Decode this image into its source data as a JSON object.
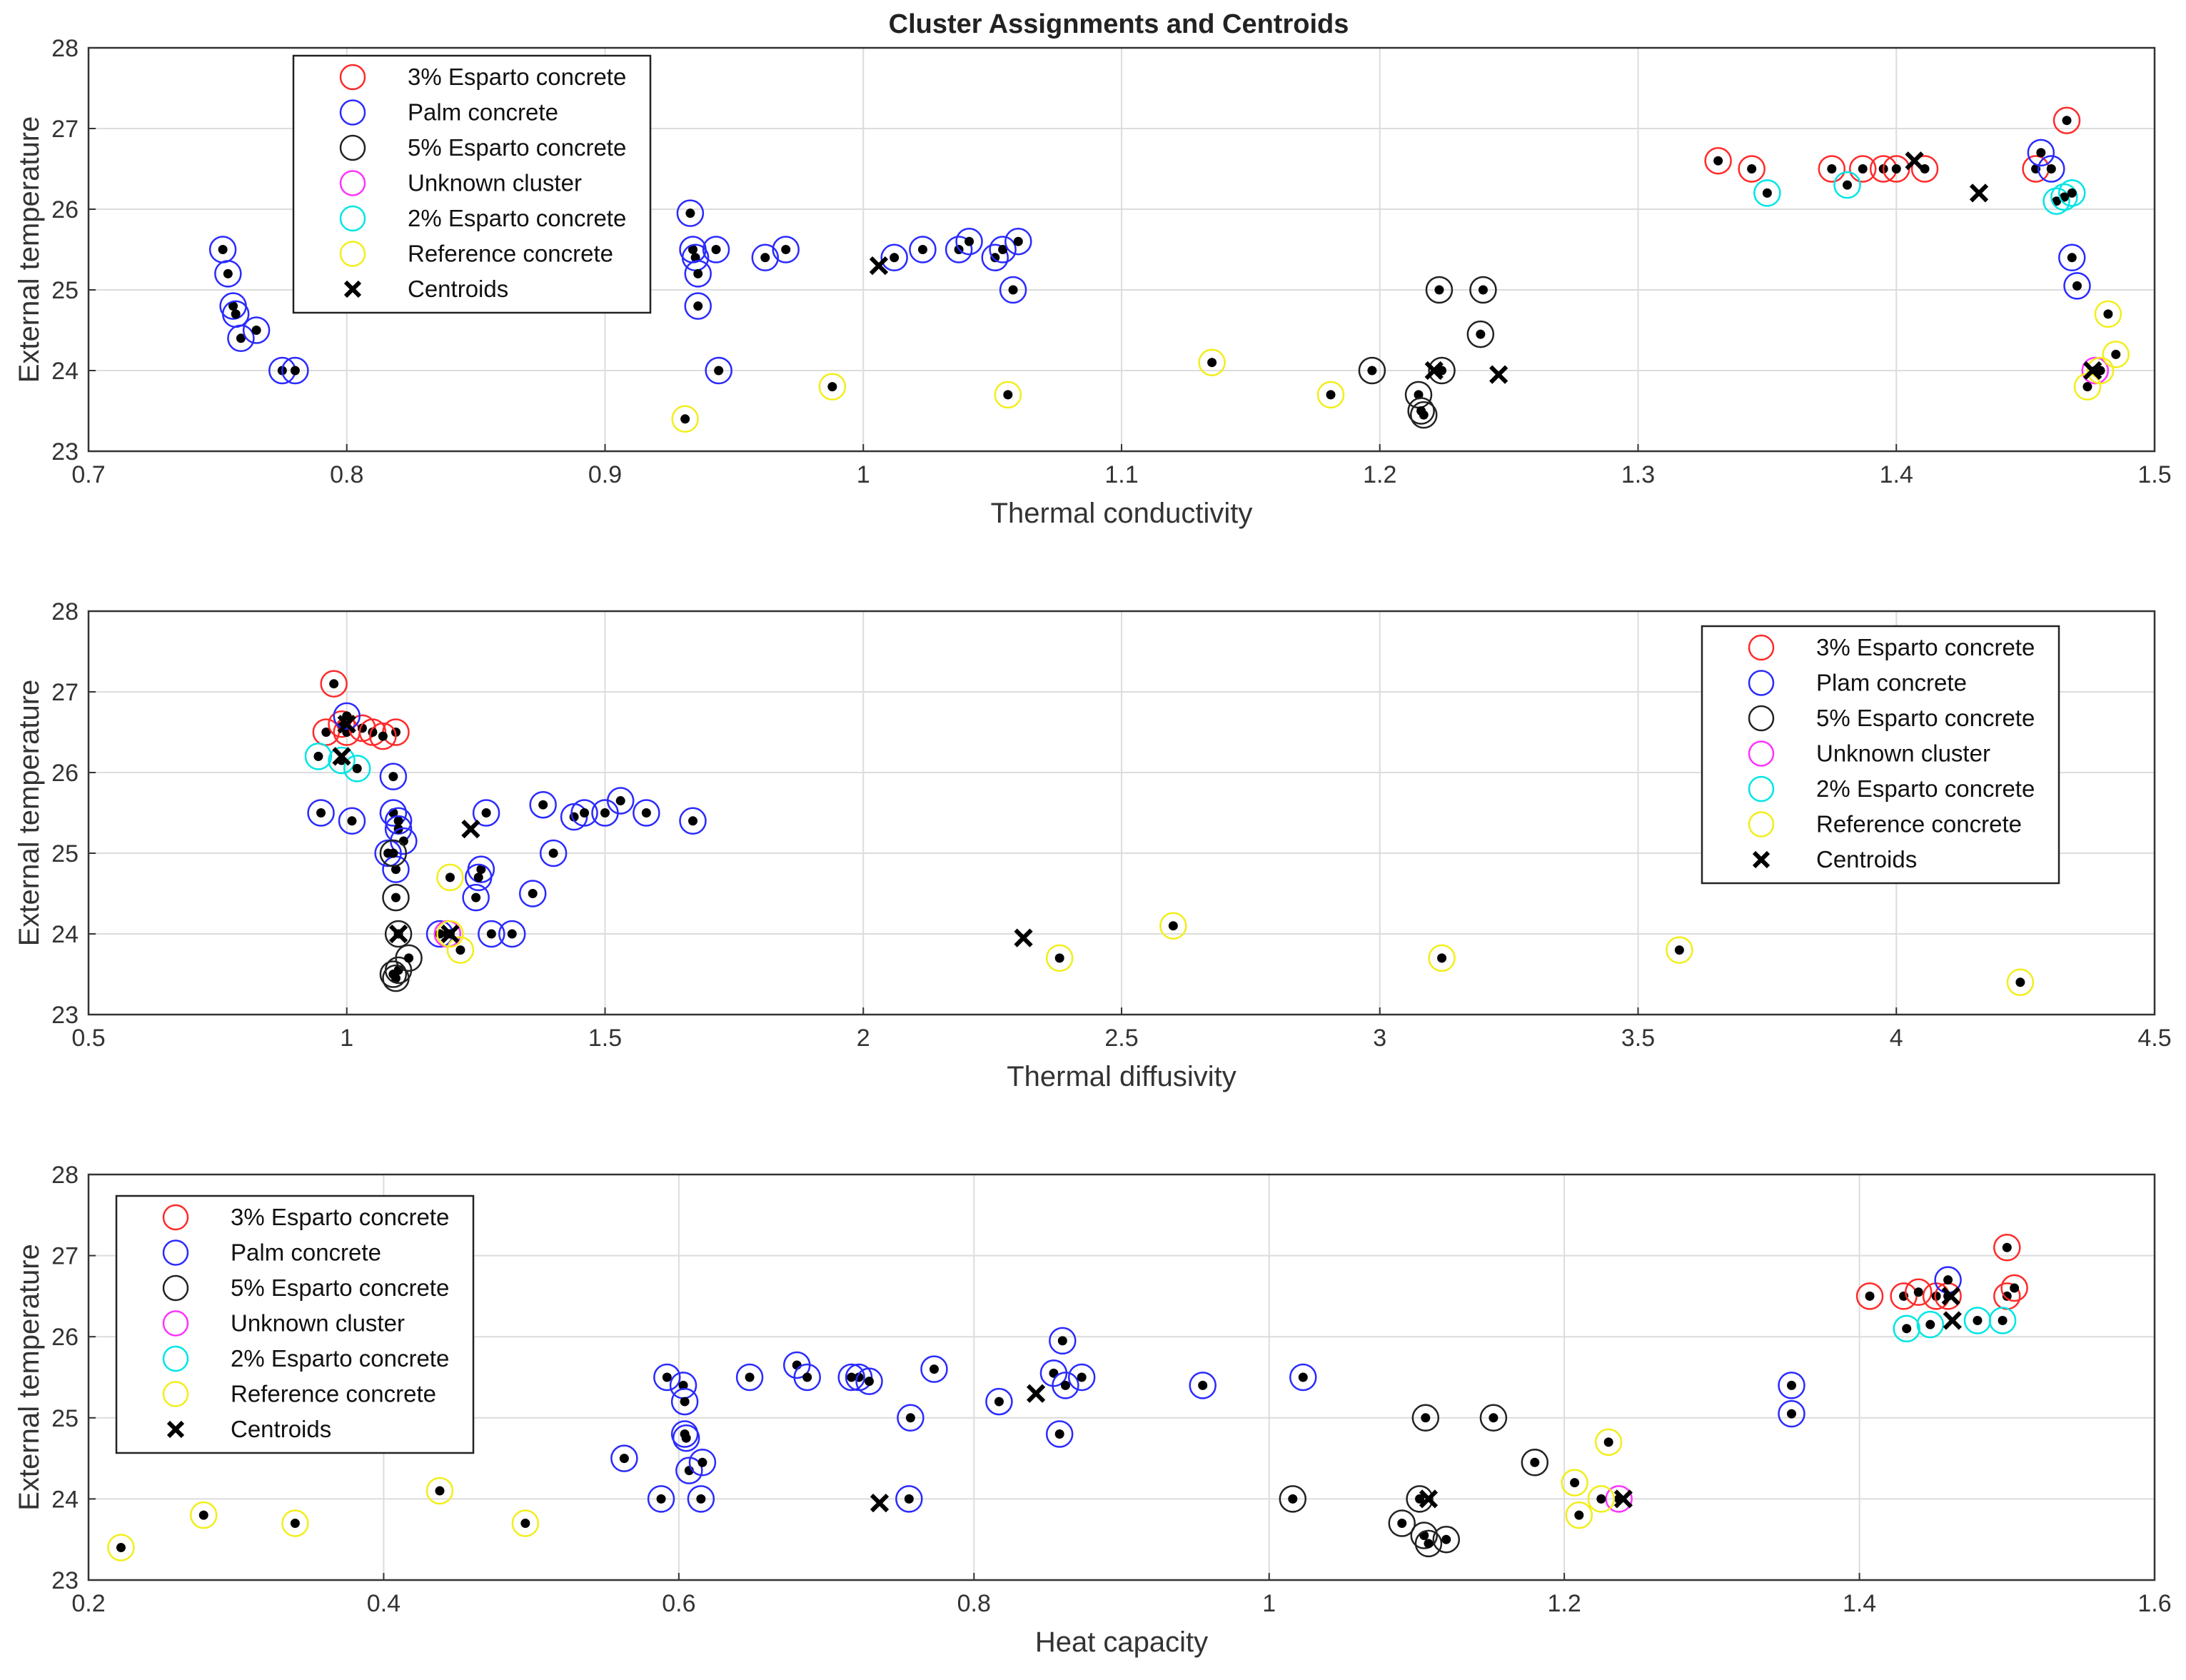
{
  "figure": {
    "title": "Cluster Assignments and Centroids"
  },
  "colors": {
    "3% Esparto concrete": "#ff2a2a",
    "Palm concrete": "#2a2aff",
    "5% Esparto concrete": "#222222",
    "Unknown cluster": "#ff33ff",
    "2% Esparto concrete": "#00e5e5",
    "Reference concrete": "#f2ee1a",
    "Centroids": "#000000"
  },
  "chart_data": [
    {
      "type": "scatter",
      "title": "Cluster Assignments and Centroids",
      "xlabel": "Thermal conductivity",
      "ylabel": "External temperature",
      "xlim": [
        0.7,
        1.5
      ],
      "ylim": [
        23,
        28
      ],
      "xticks": [
        "0.7",
        "0.8",
        "0.9",
        "1",
        "1.1",
        "1.2",
        "1.3",
        "1.4",
        "1.5"
      ],
      "yticks": [
        "23",
        "24",
        "25",
        "26",
        "27",
        "28"
      ],
      "legend_position": "top-left",
      "legend": [
        "3% Esparto concrete",
        "Palm concrete",
        "5% Esparto concrete",
        "Unknown cluster",
        "2% Esparto concrete",
        "Reference concrete",
        "Centroids"
      ],
      "series": [
        {
          "name": "3% Esparto concrete",
          "points": [
            [
              1.331,
              26.6
            ],
            [
              1.344,
              26.5
            ],
            [
              1.375,
              26.5
            ],
            [
              1.387,
              26.5
            ],
            [
              1.395,
              26.5
            ],
            [
              1.4,
              26.5
            ],
            [
              1.411,
              26.5
            ],
            [
              1.454,
              26.5
            ],
            [
              1.466,
              27.1
            ]
          ]
        },
        {
          "name": "Palm concrete",
          "points": [
            [
              0.752,
              25.5
            ],
            [
              0.754,
              25.2
            ],
            [
              0.756,
              24.8
            ],
            [
              0.757,
              24.7
            ],
            [
              0.759,
              24.4
            ],
            [
              0.765,
              24.5
            ],
            [
              0.775,
              24.0
            ],
            [
              0.78,
              24.0
            ],
            [
              0.933,
              25.95
            ],
            [
              0.934,
              25.5
            ],
            [
              0.935,
              25.4
            ],
            [
              0.936,
              25.2
            ],
            [
              0.936,
              24.8
            ],
            [
              0.943,
              25.5
            ],
            [
              0.944,
              24.0
            ],
            [
              0.962,
              25.4
            ],
            [
              0.97,
              25.5
            ],
            [
              1.012,
              25.4
            ],
            [
              1.023,
              25.5
            ],
            [
              1.037,
              25.5
            ],
            [
              1.041,
              25.6
            ],
            [
              1.051,
              25.4
            ],
            [
              1.054,
              25.5
            ],
            [
              1.058,
              25.0
            ],
            [
              1.06,
              25.6
            ],
            [
              1.456,
              26.7
            ],
            [
              1.46,
              26.5
            ],
            [
              1.468,
              25.4
            ],
            [
              1.47,
              25.05
            ]
          ]
        },
        {
          "name": "5% Esparto concrete",
          "points": [
            [
              1.197,
              24.0
            ],
            [
              1.215,
              23.7
            ],
            [
              1.216,
              23.5
            ],
            [
              1.217,
              23.45
            ],
            [
              1.223,
              25.0
            ],
            [
              1.224,
              24.0
            ],
            [
              1.239,
              24.45
            ],
            [
              1.24,
              25.0
            ]
          ]
        },
        {
          "name": "Unknown cluster",
          "points": [
            [
              1.477,
              24.0
            ]
          ]
        },
        {
          "name": "2% Esparto concrete",
          "points": [
            [
              1.35,
              26.2
            ],
            [
              1.381,
              26.3
            ],
            [
              1.462,
              26.1
            ],
            [
              1.465,
              26.15
            ],
            [
              1.468,
              26.2
            ]
          ]
        },
        {
          "name": "Reference concrete",
          "points": [
            [
              0.931,
              23.4
            ],
            [
              0.988,
              23.8
            ],
            [
              1.056,
              23.7
            ],
            [
              1.135,
              24.1
            ],
            [
              1.181,
              23.7
            ],
            [
              1.474,
              23.8
            ],
            [
              1.479,
              24.0
            ],
            [
              1.482,
              24.7
            ],
            [
              1.485,
              24.2
            ]
          ]
        },
        {
          "name": "Centroids",
          "points": [
            [
              1.006,
              25.3
            ],
            [
              1.221,
              24.0
            ],
            [
              1.246,
              23.95
            ],
            [
              1.407,
              26.6
            ],
            [
              1.432,
              26.2
            ],
            [
              1.476,
              24.0
            ]
          ]
        }
      ]
    },
    {
      "type": "scatter",
      "title": "",
      "xlabel": "Thermal diffusivity",
      "ylabel": "External temperature",
      "xlim": [
        0.5,
        4.5
      ],
      "ylim": [
        23,
        28
      ],
      "xticks": [
        "0.5",
        "1",
        "1.5",
        "2",
        "2.5",
        "3",
        "3.5",
        "4",
        "4.5"
      ],
      "yticks": [
        "23",
        "24",
        "25",
        "26",
        "27",
        "28"
      ],
      "legend_position": "top-right",
      "legend": [
        "3% Esparto concrete",
        "Plam concrete",
        "5% Esparto concrete",
        "Unknown cluster",
        "2% Esparto concrete",
        "Reference concrete",
        "Centroids"
      ],
      "series": [
        {
          "name": "3% Esparto concrete",
          "points": [
            [
              0.96,
              26.5
            ],
            [
              0.975,
              27.1
            ],
            [
              0.99,
              26.6
            ],
            [
              1.0,
              26.5
            ],
            [
              1.03,
              26.55
            ],
            [
              1.05,
              26.5
            ],
            [
              1.095,
              26.5
            ],
            [
              1.07,
              26.45
            ]
          ]
        },
        {
          "name": "Palm concrete",
          "points": [
            [
              0.95,
              25.5
            ],
            [
              1.01,
              25.4
            ],
            [
              1.0,
              26.7
            ],
            [
              1.09,
              25.95
            ],
            [
              1.09,
              25.5
            ],
            [
              1.1,
              25.4
            ],
            [
              1.1,
              25.3
            ],
            [
              1.11,
              25.15
            ],
            [
              1.08,
              25.0
            ],
            [
              1.095,
              24.8
            ],
            [
              1.18,
              24.0
            ],
            [
              1.26,
              24.8
            ],
            [
              1.255,
              24.7
            ],
            [
              1.25,
              24.45
            ],
            [
              1.27,
              25.5
            ],
            [
              1.28,
              24.0
            ],
            [
              1.32,
              24.0
            ],
            [
              1.36,
              24.5
            ],
            [
              1.38,
              25.6
            ],
            [
              1.4,
              25.0
            ],
            [
              1.44,
              25.45
            ],
            [
              1.46,
              25.5
            ],
            [
              1.5,
              25.5
            ],
            [
              1.53,
              25.65
            ],
            [
              1.58,
              25.5
            ],
            [
              1.67,
              25.4
            ]
          ]
        },
        {
          "name": "5% Esparto concrete",
          "points": [
            [
              1.09,
              25.0
            ],
            [
              1.095,
              24.45
            ],
            [
              1.1,
              24.0
            ],
            [
              1.09,
              23.5
            ],
            [
              1.095,
              23.45
            ],
            [
              1.1,
              23.55
            ],
            [
              1.12,
              23.7
            ]
          ]
        },
        {
          "name": "Unknown cluster",
          "points": [
            [
              1.195,
              24.0
            ]
          ]
        },
        {
          "name": "2% Esparto concrete",
          "points": [
            [
              0.945,
              26.2
            ],
            [
              0.99,
              26.15
            ],
            [
              1.02,
              26.05
            ]
          ]
        },
        {
          "name": "Reference concrete",
          "points": [
            [
              1.2,
              24.0
            ],
            [
              1.2,
              24.7
            ],
            [
              1.22,
              23.8
            ],
            [
              2.38,
              23.7
            ],
            [
              2.6,
              24.1
            ],
            [
              3.12,
              23.7
            ],
            [
              3.58,
              23.8
            ],
            [
              4.24,
              23.4
            ]
          ]
        },
        {
          "name": "Centroids",
          "points": [
            [
              0.99,
              26.2
            ],
            [
              1.0,
              26.6
            ],
            [
              1.1,
              24.0
            ],
            [
              1.2,
              24.0
            ],
            [
              1.24,
              25.3
            ],
            [
              2.31,
              23.95
            ]
          ]
        }
      ]
    },
    {
      "type": "scatter",
      "title": "",
      "xlabel": "Heat capacity",
      "ylabel": "External temperature",
      "xlim": [
        0.2,
        1.6
      ],
      "ylim": [
        23,
        28
      ],
      "xticks": [
        "0.2",
        "0.4",
        "0.6",
        "0.8",
        "1",
        "1.2",
        "1.4",
        "1.6"
      ],
      "yticks": [
        "23",
        "24",
        "25",
        "26",
        "27",
        "28"
      ],
      "legend_position": "top-left",
      "legend": [
        "3% Esparto concrete",
        "Palm concrete",
        "5% Esparto concrete",
        "Unknown cluster",
        "2% Esparto concrete",
        "Reference concrete",
        "Centroids"
      ],
      "series": [
        {
          "name": "3% Esparto concrete",
          "points": [
            [
              1.407,
              26.5
            ],
            [
              1.43,
              26.5
            ],
            [
              1.44,
              26.55
            ],
            [
              1.452,
              26.5
            ],
            [
              1.46,
              26.5
            ],
            [
              1.5,
              27.1
            ],
            [
              1.5,
              26.5
            ],
            [
              1.505,
              26.6
            ]
          ]
        },
        {
          "name": "Palm concrete",
          "points": [
            [
              0.563,
              24.5
            ],
            [
              0.588,
              24.0
            ],
            [
              0.592,
              25.5
            ],
            [
              0.603,
              25.4
            ],
            [
              0.604,
              25.2
            ],
            [
              0.604,
              24.8
            ],
            [
              0.605,
              24.75
            ],
            [
              0.607,
              24.35
            ],
            [
              0.615,
              24.0
            ],
            [
              0.616,
              24.45
            ],
            [
              0.648,
              25.5
            ],
            [
              0.68,
              25.65
            ],
            [
              0.687,
              25.5
            ],
            [
              0.717,
              25.5
            ],
            [
              0.722,
              25.5
            ],
            [
              0.729,
              25.45
            ],
            [
              0.756,
              24.0
            ],
            [
              0.757,
              25.0
            ],
            [
              0.773,
              25.6
            ],
            [
              0.817,
              25.2
            ],
            [
              0.854,
              25.55
            ],
            [
              0.858,
              24.8
            ],
            [
              0.86,
              25.95
            ],
            [
              0.862,
              25.4
            ],
            [
              0.873,
              25.5
            ],
            [
              0.955,
              25.4
            ],
            [
              1.023,
              25.5
            ],
            [
              1.354,
              25.4
            ],
            [
              1.354,
              25.05
            ],
            [
              1.46,
              26.7
            ]
          ]
        },
        {
          "name": "5% Esparto concrete",
          "points": [
            [
              1.016,
              24.0
            ],
            [
              1.09,
              23.7
            ],
            [
              1.102,
              24.0
            ],
            [
              1.105,
              23.55
            ],
            [
              1.108,
              23.45
            ],
            [
              1.106,
              25.0
            ],
            [
              1.12,
              23.5
            ],
            [
              1.152,
              25.0
            ],
            [
              1.18,
              24.45
            ]
          ]
        },
        {
          "name": "Unknown cluster",
          "points": [
            [
              1.237,
              24.0
            ]
          ]
        },
        {
          "name": "2% Esparto concrete",
          "points": [
            [
              1.432,
              26.1
            ],
            [
              1.448,
              26.15
            ],
            [
              1.48,
              26.2
            ],
            [
              1.497,
              26.2
            ]
          ]
        },
        {
          "name": "Reference concrete",
          "points": [
            [
              0.222,
              23.4
            ],
            [
              0.278,
              23.8
            ],
            [
              0.34,
              23.7
            ],
            [
              0.438,
              24.1
            ],
            [
              0.496,
              23.7
            ],
            [
              1.207,
              24.2
            ],
            [
              1.21,
              23.8
            ],
            [
              1.225,
              24.0
            ],
            [
              1.23,
              24.7
            ]
          ]
        },
        {
          "name": "Centroids",
          "points": [
            [
              0.736,
              23.95
            ],
            [
              0.842,
              25.3
            ],
            [
              1.108,
              24.0
            ],
            [
              1.24,
              24.0
            ],
            [
              1.462,
              26.5
            ],
            [
              1.463,
              26.2
            ]
          ]
        }
      ]
    }
  ]
}
